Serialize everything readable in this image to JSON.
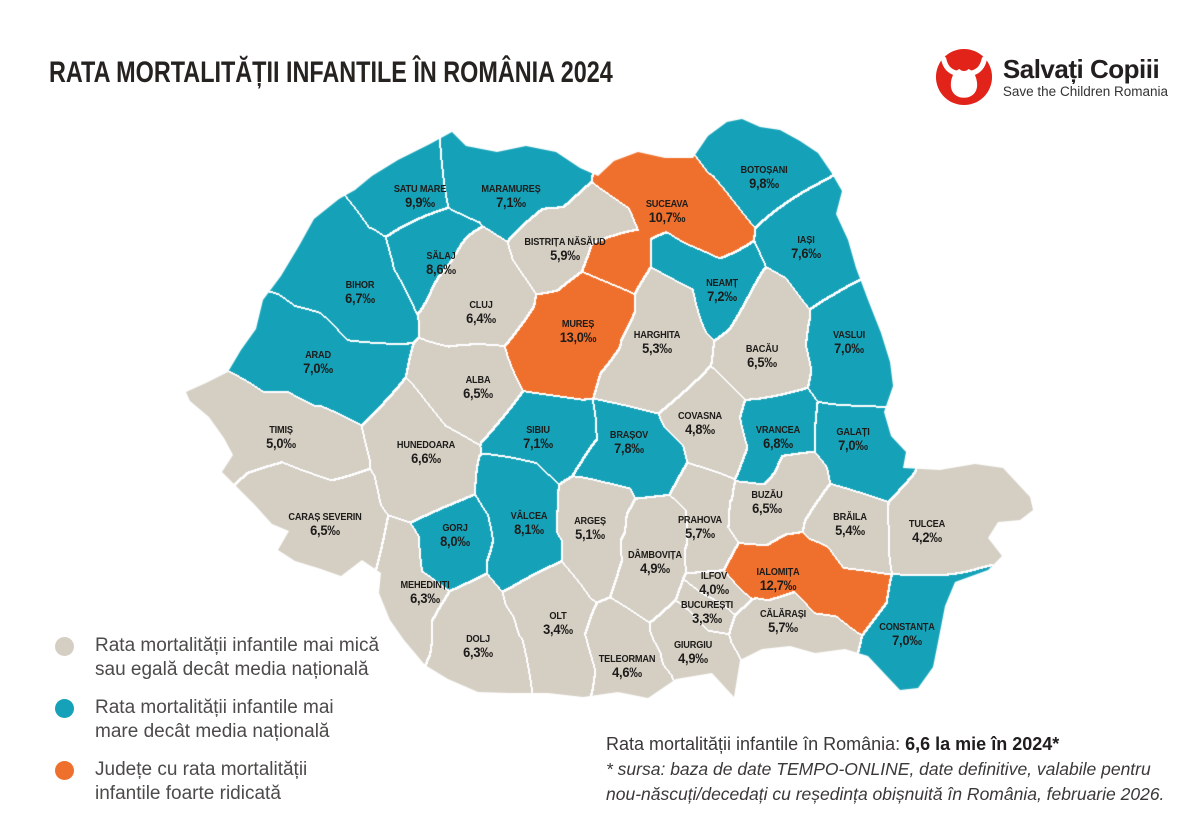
{
  "header": {
    "title": "RATA MORTALITĂȚII INFANTILE ÎN ROMÂNIA 2024",
    "logo": {
      "brand": "Salvați Copiii",
      "tagline": "Save the Children Romania"
    }
  },
  "colors": {
    "low": "#d4cec3",
    "high": "#15a2b8",
    "very_high": "#ef702c",
    "border": "#ffffff",
    "logo_red": "#e2231a",
    "map_text": "#1e1c1a"
  },
  "legend": {
    "items": [
      {
        "category": "low",
        "lines": [
          "Rata mortalității infantile mai mică",
          "sau egală decât media națională"
        ]
      },
      {
        "category": "high",
        "lines": [
          "Rata mortalității infantile mai",
          "mare decât media națională"
        ]
      },
      {
        "category": "very_high",
        "lines": [
          "Județe cu rata mortalității",
          "infantile foarte ridicată"
        ]
      }
    ]
  },
  "footer": {
    "rate_label": "Rata mortalității infantile în România:",
    "rate_value": "6,6 la mie în 2024*",
    "source_lines": [
      "* sursa: baza de date TEMPO-ONLINE, date definitive, valabile pentru",
      "nou-născuți/decedați cu reședința obișnuită în România, februarie 2026."
    ]
  },
  "counties": [
    {
      "id": "satu-mare",
      "name": "SATU MARE",
      "value": "9,9‰",
      "category": "high"
    },
    {
      "id": "maramures",
      "name": "MARAMUREȘ",
      "value": "7,1‰",
      "category": "high"
    },
    {
      "id": "botosani",
      "name": "BOTOȘANI",
      "value": "9,8‰",
      "category": "high"
    },
    {
      "id": "suceava",
      "name": "SUCEAVA",
      "value": "10,7‰",
      "category": "very_high"
    },
    {
      "id": "iasi",
      "name": "IAȘI",
      "value": "7,6‰",
      "category": "high"
    },
    {
      "id": "bistrita-nasaud",
      "name": "BISTRIȚA NĂSĂUD",
      "value": "5,9‰",
      "category": "low"
    },
    {
      "id": "salaj",
      "name": "SĂLAJ",
      "value": "8,6‰",
      "category": "high"
    },
    {
      "id": "bihor",
      "name": "BIHOR",
      "value": "6,7‰",
      "category": "high"
    },
    {
      "id": "neamt",
      "name": "NEAMȚ",
      "value": "7,2‰",
      "category": "high"
    },
    {
      "id": "cluj",
      "name": "CLUJ",
      "value": "6,4‰",
      "category": "low"
    },
    {
      "id": "mures",
      "name": "MUREȘ",
      "value": "13,0‰",
      "category": "very_high"
    },
    {
      "id": "harghita",
      "name": "HARGHITA",
      "value": "5,3‰",
      "category": "low"
    },
    {
      "id": "bacau",
      "name": "BACĂU",
      "value": "6,5‰",
      "category": "low"
    },
    {
      "id": "vaslui",
      "name": "VASLUI",
      "value": "7,0‰",
      "category": "high"
    },
    {
      "id": "arad",
      "name": "ARAD",
      "value": "7,0‰",
      "category": "high"
    },
    {
      "id": "alba",
      "name": "ALBA",
      "value": "6,5‰",
      "category": "low"
    },
    {
      "id": "timis",
      "name": "TIMIȘ",
      "value": "5,0‰",
      "category": "low"
    },
    {
      "id": "hunedoara",
      "name": "HUNEDOARA",
      "value": "6,6‰",
      "category": "low"
    },
    {
      "id": "sibiu",
      "name": "SIBIU",
      "value": "7,1‰",
      "category": "high"
    },
    {
      "id": "brasov",
      "name": "BRAȘOV",
      "value": "7,8‰",
      "category": "high"
    },
    {
      "id": "covasna",
      "name": "COVASNA",
      "value": "4,8‰",
      "category": "low"
    },
    {
      "id": "vrancea",
      "name": "VRANCEA",
      "value": "6,8‰",
      "category": "high"
    },
    {
      "id": "galati",
      "name": "GALAȚI",
      "value": "7,0‰",
      "category": "high"
    },
    {
      "id": "caras-severin",
      "name": "CARAȘ SEVERIN",
      "value": "6,5‰",
      "category": "low"
    },
    {
      "id": "gorj",
      "name": "GORJ",
      "value": "8,0‰",
      "category": "high"
    },
    {
      "id": "valcea",
      "name": "VÂLCEA",
      "value": "8,1‰",
      "category": "high"
    },
    {
      "id": "arges",
      "name": "ARGEȘ",
      "value": "5,1‰",
      "category": "low"
    },
    {
      "id": "dambovita",
      "name": "DÂMBOVIȚA",
      "value": "4,9‰",
      "category": "low"
    },
    {
      "id": "prahova",
      "name": "PRAHOVA",
      "value": "5,7‰",
      "category": "low"
    },
    {
      "id": "buzau",
      "name": "BUZĂU",
      "value": "6,5‰",
      "category": "low"
    },
    {
      "id": "braila",
      "name": "BRĂILA",
      "value": "5,4‰",
      "category": "low"
    },
    {
      "id": "tulcea",
      "name": "TULCEA",
      "value": "4,2‰",
      "category": "low"
    },
    {
      "id": "mehedinti",
      "name": "MEHEDINȚI",
      "value": "6,3‰",
      "category": "low"
    },
    {
      "id": "dolj",
      "name": "DOLJ",
      "value": "6,3‰",
      "category": "low"
    },
    {
      "id": "olt",
      "name": "OLT",
      "value": "3,4‰",
      "category": "low"
    },
    {
      "id": "teleorman",
      "name": "TELEORMAN",
      "value": "4,6‰",
      "category": "low"
    },
    {
      "id": "giurgiu",
      "name": "GIURGIU",
      "value": "4,9‰",
      "category": "low"
    },
    {
      "id": "bucuresti",
      "name": "BUCUREȘTI",
      "value": "3,3‰",
      "category": "low"
    },
    {
      "id": "ilfov",
      "name": "ILFOV",
      "value": "4,0‰",
      "category": "low"
    },
    {
      "id": "ialomita",
      "name": "IALOMIȚA",
      "value": "12,7‰",
      "category": "very_high"
    },
    {
      "id": "calarasi",
      "name": "CĂLĂRAȘI",
      "value": "5,7‰",
      "category": "low"
    },
    {
      "id": "constanta",
      "name": "CONSTANȚA",
      "value": "7,0‰",
      "category": "high"
    }
  ]
}
